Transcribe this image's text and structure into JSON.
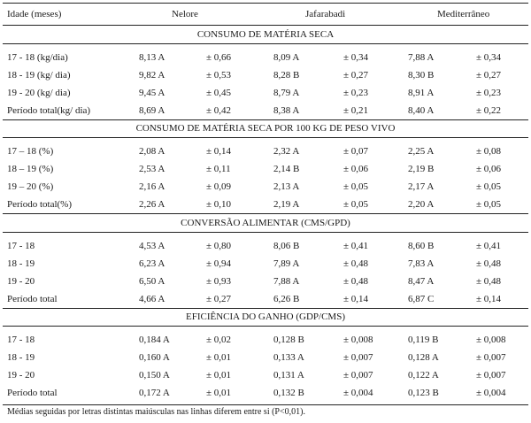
{
  "header": {
    "col0": "Idade (meses)",
    "col1": "Nelore",
    "col2": "Jafarabadi",
    "col3": "Mediterrâneo"
  },
  "sections": [
    {
      "title": "CONSUMO DE MATÉRIA SECA",
      "rows": [
        [
          "17 - 18   (kg/dia)",
          "8,13 A",
          "± 0,66",
          "8,09 A",
          "± 0,34",
          "7,88 A",
          "± 0,34"
        ],
        [
          "18 - 19  (kg/ dia)",
          "9,82 A",
          "± 0,53",
          "8,28 B",
          "± 0,27",
          "8,30 B",
          "± 0,27"
        ],
        [
          "19 - 20  (kg/ dia)",
          "9,45 A",
          "± 0,45",
          "8,79 A",
          "± 0,23",
          "8,91 A",
          "± 0,23"
        ],
        [
          "Período total(kg/ dia)",
          "8,69 A",
          "± 0,42",
          "8,38 A",
          "± 0,21",
          "8,40 A",
          "± 0,22"
        ]
      ]
    },
    {
      "title": "CONSUMO DE MATÉRIA SECA POR 100 KG DE PESO VIVO",
      "rows": [
        [
          "17 – 18   (%)",
          "2,08 A",
          "± 0,14",
          "2,32 A",
          "± 0,07",
          "2,25 A",
          "± 0,08"
        ],
        [
          "18 – 19   (%)",
          "2,53 A",
          "± 0,11",
          "2,14 B",
          "± 0,06",
          "2,19 B",
          "± 0,06"
        ],
        [
          "19 – 20   (%)",
          "2,16 A",
          "± 0,09",
          "2,13 A",
          "± 0,05",
          "2,17 A",
          "± 0,05"
        ],
        [
          "Período total(%)",
          "2,26 A",
          "± 0,10",
          "2,19 A",
          "± 0,05",
          "2,20 A",
          "± 0,05"
        ]
      ]
    },
    {
      "title": "CONVERSÃO ALIMENTAR (CMS/GPD)",
      "rows": [
        [
          "17 - 18",
          "4,53 A",
          "± 0,80",
          "8,06 B",
          "± 0,41",
          "8,60 B",
          "± 0,41"
        ],
        [
          "18 - 19",
          "6,23 A",
          "± 0,94",
          "7,89 A",
          "± 0,48",
          "7,83 A",
          "± 0,48"
        ],
        [
          "19 - 20",
          "6,50 A",
          "± 0,93",
          "7,88 A",
          "± 0,48",
          "8,47 A",
          "± 0,48"
        ],
        [
          "Período total",
          "4,66 A",
          "± 0,27",
          "6,26 B",
          "± 0,14",
          "6,87 C",
          "± 0,14"
        ]
      ]
    },
    {
      "title": "EFICIÊNCIA DO GANHO (GDP/CMS)",
      "rows": [
        [
          "17 - 18",
          "0,184 A",
          "± 0,02",
          "0,128 B",
          "± 0,008",
          "0,119 B",
          "± 0,008"
        ],
        [
          "18 - 19",
          "0,160 A",
          "± 0,01",
          "0,133 A",
          "± 0,007",
          "0,128 A",
          "± 0,007"
        ],
        [
          "19 - 20",
          "0,150 A",
          "± 0,01",
          "0,131 A",
          "± 0,007",
          "0,122 A",
          "± 0,007"
        ],
        [
          "Período total",
          "0,172 A",
          "± 0,01",
          "0,132 B",
          "± 0,004",
          "0,123 B",
          "± 0,004"
        ]
      ]
    }
  ],
  "footnote": "Médias seguidas por letras distintas maiúsculas nas linhas diferem entre si (P<0,01)."
}
